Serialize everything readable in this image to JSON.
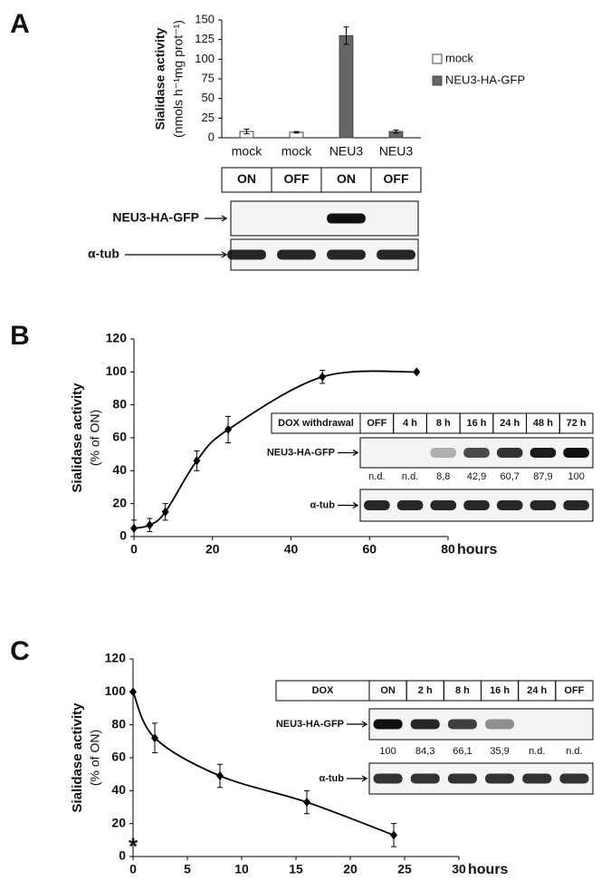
{
  "chart_data": [
    {
      "panel": "A",
      "type": "bar",
      "y_label": [
        "Sialidase activity",
        "(nmols h⁻¹mg prot⁻¹)"
      ],
      "categories": [
        "mock",
        "mock",
        "NEU3",
        "NEU3"
      ],
      "series": [
        {
          "name": "mock",
          "color": "#ffffff",
          "values": [
            8,
            7,
            null,
            null
          ],
          "errors": [
            3,
            1,
            null,
            null
          ]
        },
        {
          "name": "NEU3-HA-GFP",
          "color": "#666666",
          "values": [
            null,
            null,
            130,
            8
          ],
          "errors": [
            null,
            null,
            11,
            2
          ]
        }
      ],
      "ylim": [
        0,
        150
      ],
      "yticks": [
        0,
        25,
        50,
        75,
        100,
        125,
        150
      ],
      "legend": "right"
    },
    {
      "panel": "B",
      "type": "line",
      "y_label": [
        "Sialidase activity",
        "(% of ON)"
      ],
      "x_label": "hours",
      "x": [
        0,
        4,
        8,
        16,
        24,
        48,
        72
      ],
      "values": [
        5,
        7,
        15,
        46,
        65,
        97,
        100
      ],
      "errors": [
        5,
        4,
        5,
        6,
        8,
        4,
        0
      ],
      "xlim": [
        0,
        80
      ],
      "xticks": [
        0,
        20,
        40,
        60,
        80
      ],
      "ylim": [
        0,
        120
      ],
      "yticks": [
        0,
        20,
        40,
        60,
        80,
        100,
        120
      ],
      "color": "#000000"
    },
    {
      "panel": "C",
      "type": "line",
      "y_label": [
        "Sialidase activity",
        "(% of ON)"
      ],
      "x_label": "hours",
      "x": [
        0,
        2,
        8,
        16,
        24
      ],
      "values": [
        100,
        72,
        49,
        33,
        13
      ],
      "errors": [
        0,
        9,
        7,
        7,
        7
      ],
      "xlim": [
        0,
        30
      ],
      "xticks": [
        0,
        5,
        10,
        15,
        20,
        25,
        30
      ],
      "ylim": [
        0,
        120
      ],
      "yticks": [
        0,
        20,
        40,
        60,
        80,
        100,
        120
      ],
      "color": "#000000",
      "annotations": [
        {
          "text": "*",
          "x": 0,
          "y": 8
        }
      ]
    }
  ],
  "blots": [
    {
      "header": [
        "ON",
        "OFF",
        "ON",
        "OFF"
      ],
      "rows": [
        "NEU3-HA-GFP",
        "α-tub"
      ]
    },
    {
      "header": [
        "DOX withdrawal",
        "OFF",
        "4 h",
        "8 h",
        "16 h",
        "24 h",
        "48 h",
        "72 h"
      ],
      "rows": [
        "NEU3-HA-GFP",
        "α-tub"
      ],
      "quantification": [
        "n.d.",
        "n.d.",
        "8,8",
        "42,9",
        "60,7",
        "87,9",
        "100"
      ]
    },
    {
      "header": [
        "DOX",
        "ON",
        "2 h",
        "8 h",
        "16 h",
        "24 h",
        "OFF"
      ],
      "rows": [
        "NEU3-HA-GFP",
        "α-tub"
      ],
      "quantification": [
        "100",
        "84,3",
        "66,1",
        "35,9",
        "n.d.",
        "n.d."
      ]
    }
  ]
}
